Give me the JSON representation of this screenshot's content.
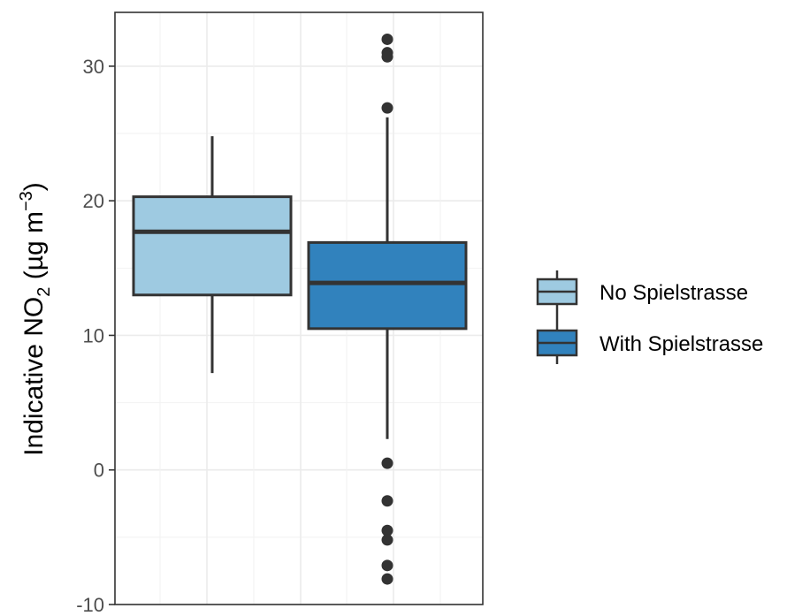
{
  "chart_data": {
    "type": "box",
    "title": "",
    "xlabel": "",
    "ylabel": {
      "prefix": "Indicative NO",
      "subscript": "2",
      "units_open": " (µg m",
      "superscript": "−3",
      "units_close": ")"
    },
    "ylim": [
      -10,
      34
    ],
    "yticks": [
      -10,
      0,
      10,
      20,
      30
    ],
    "ytick_labels": [
      "-10",
      "0",
      "10",
      "20",
      "30"
    ],
    "grid": true,
    "legend_position": "right",
    "series": [
      {
        "name": "No Spielstrasse",
        "color": "#9ecae1",
        "whisker_low": 7.2,
        "q1": 13.0,
        "median": 17.7,
        "q3": 20.3,
        "whisker_high": 24.8,
        "outliers": []
      },
      {
        "name": "With Spielstrasse",
        "color": "#3182bd",
        "whisker_low": 2.3,
        "q1": 10.5,
        "median": 13.9,
        "q3": 16.9,
        "whisker_high": 26.2,
        "outliers": [
          32.0,
          31.0,
          30.7,
          26.9,
          0.5,
          -2.3,
          -4.5,
          -5.2,
          -7.1,
          -8.1
        ]
      }
    ]
  }
}
